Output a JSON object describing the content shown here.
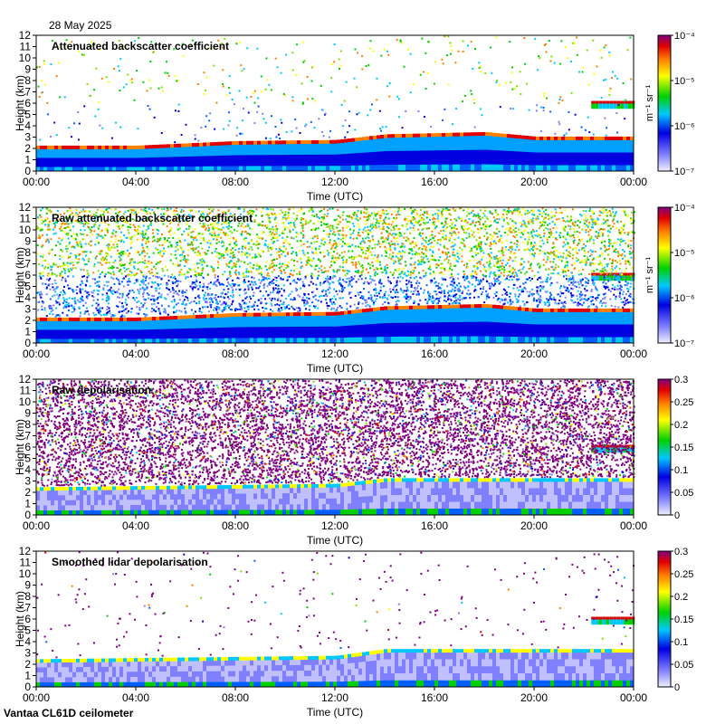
{
  "header": {
    "date": "28 May 2025"
  },
  "footer": {
    "instrument": "Vantaa CL61D ceilometer"
  },
  "chart_data": [
    {
      "type": "heatmap",
      "title": "Attenuated backscatter coefficient",
      "xlabel": "Time (UTC)",
      "ylabel": "Height (km)",
      "x_ticks": [
        "00:00",
        "04:00",
        "08:00",
        "12:00",
        "16:00",
        "20:00",
        "00:00"
      ],
      "y_ticks": [
        0,
        1,
        2,
        3,
        4,
        5,
        6,
        7,
        8,
        9,
        10,
        11,
        12
      ],
      "ylim": [
        0,
        12
      ],
      "colorbar": {
        "scale": "log",
        "range": [
          1e-07,
          0.0001
        ],
        "unit": "m⁻¹ sr⁻¹",
        "ticks": [
          "10⁻⁴",
          "10⁻⁵",
          "10⁻⁶",
          "10⁻⁷"
        ]
      },
      "features": {
        "cloud_base_km": [
          {
            "hour": 0,
            "km": 2.0
          },
          {
            "hour": 4,
            "km": 2.0
          },
          {
            "hour": 8,
            "km": 2.4
          },
          {
            "hour": 12,
            "km": 2.5
          },
          {
            "hour": 14,
            "km": 3.0
          },
          {
            "hour": 18,
            "km": 3.2
          },
          {
            "hour": 20,
            "km": 2.8
          },
          {
            "hour": 24,
            "km": 2.8
          }
        ],
        "upper_cloud": {
          "hours": [
            22.3,
            24
          ],
          "km": 5.5
        },
        "noise_level": 0.05
      }
    },
    {
      "type": "heatmap",
      "title": "Raw attenuated backscatter coefficient",
      "xlabel": "Time (UTC)",
      "ylabel": "Height (km)",
      "x_ticks": [
        "00:00",
        "04:00",
        "08:00",
        "12:00",
        "16:00",
        "20:00",
        "00:00"
      ],
      "y_ticks": [
        0,
        1,
        2,
        3,
        4,
        5,
        6,
        7,
        8,
        9,
        10,
        11,
        12
      ],
      "ylim": [
        0,
        12
      ],
      "colorbar": {
        "scale": "log",
        "range": [
          1e-07,
          0.0001
        ],
        "unit": "m⁻¹ sr⁻¹",
        "ticks": [
          "10⁻⁴",
          "10⁻⁵",
          "10⁻⁶",
          "10⁻⁷"
        ]
      },
      "features": {
        "cloud_base_km": [
          {
            "hour": 0,
            "km": 2.0
          },
          {
            "hour": 4,
            "km": 2.0
          },
          {
            "hour": 8,
            "km": 2.4
          },
          {
            "hour": 12,
            "km": 2.5
          },
          {
            "hour": 14,
            "km": 3.0
          },
          {
            "hour": 18,
            "km": 3.2
          },
          {
            "hour": 20,
            "km": 2.8
          },
          {
            "hour": 24,
            "km": 2.8
          }
        ],
        "upper_cloud": {
          "hours": [
            22.3,
            24
          ],
          "km": 5.5
        },
        "noise_level": 0.6
      }
    },
    {
      "type": "heatmap",
      "title": "Raw depolarisation",
      "xlabel": "Time (UTC)",
      "ylabel": "Height (km)",
      "x_ticks": [
        "00:00",
        "04:00",
        "08:00",
        "12:00",
        "16:00",
        "20:00",
        "00:00"
      ],
      "y_ticks": [
        0,
        1,
        2,
        3,
        4,
        5,
        6,
        7,
        8,
        9,
        10,
        11,
        12
      ],
      "ylim": [
        0,
        12
      ],
      "colorbar": {
        "scale": "linear",
        "range": [
          0,
          0.3
        ],
        "ticks": [
          "0.3",
          "0.25",
          "0.2",
          "0.15",
          "0.1",
          "0.05",
          "0"
        ]
      },
      "features": {
        "cloud_base_km": [
          {
            "hour": 0,
            "km": 2.2
          },
          {
            "hour": 12,
            "km": 2.5
          },
          {
            "hour": 14,
            "km": 3.0
          },
          {
            "hour": 20,
            "km": 3.0
          },
          {
            "hour": 24,
            "km": 3.0
          }
        ],
        "upper_cloud": {
          "hours": [
            22.3,
            24
          ],
          "km": 5.5
        },
        "noise_level": 0.9
      }
    },
    {
      "type": "heatmap",
      "title": "Smoothed lidar depolarisation",
      "xlabel": "Time (UTC)",
      "ylabel": "Height (km)",
      "x_ticks": [
        "00:00",
        "04:00",
        "08:00",
        "12:00",
        "16:00",
        "20:00",
        "00:00"
      ],
      "y_ticks": [
        0,
        1,
        2,
        3,
        4,
        5,
        6,
        7,
        8,
        9,
        10,
        11,
        12
      ],
      "ylim": [
        0,
        12
      ],
      "colorbar": {
        "scale": "linear",
        "range": [
          0,
          0.3
        ],
        "ticks": [
          "0.3",
          "0.25",
          "0.2",
          "0.15",
          "0.1",
          "0.05",
          "0"
        ]
      },
      "features": {
        "cloud_base_km": [
          {
            "hour": 0,
            "km": 2.2
          },
          {
            "hour": 12,
            "km": 2.5
          },
          {
            "hour": 14,
            "km": 3.1
          },
          {
            "hour": 20,
            "km": 3.1
          },
          {
            "hour": 24,
            "km": 3.1
          }
        ],
        "upper_cloud": {
          "hours": [
            22.3,
            24
          ],
          "km": 5.5
        },
        "noise_level": 0.03
      }
    }
  ]
}
